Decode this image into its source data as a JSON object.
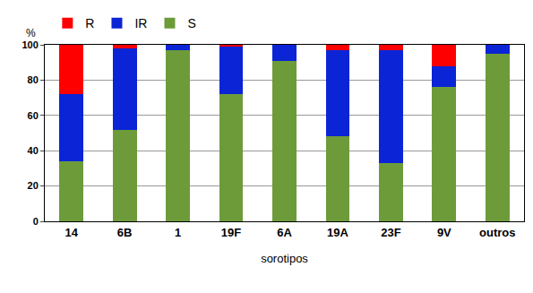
{
  "chart_data": {
    "type": "bar",
    "stacked": true,
    "x_label": "sorotipos",
    "y_label": "%",
    "categories": [
      "14",
      "6B",
      "1",
      "19F",
      "6A",
      "19A",
      "23F",
      "9V",
      "outros"
    ],
    "series": [
      {
        "name": "S",
        "color": "#6d9b3a",
        "values": [
          34,
          52,
          97,
          72,
          91,
          48,
          33,
          76,
          95
        ]
      },
      {
        "name": "IR",
        "color": "#0a24d6",
        "values": [
          38,
          46,
          3,
          27,
          9,
          49,
          64,
          12,
          5
        ]
      },
      {
        "name": "R",
        "color": "#ff0000",
        "values": [
          28,
          2,
          0,
          1,
          0,
          3,
          3,
          12,
          0
        ]
      }
    ],
    "ylim": [
      0,
      100
    ],
    "yticks": [
      0,
      20,
      40,
      60,
      80,
      100
    ],
    "grid": true,
    "legend": "top left"
  }
}
